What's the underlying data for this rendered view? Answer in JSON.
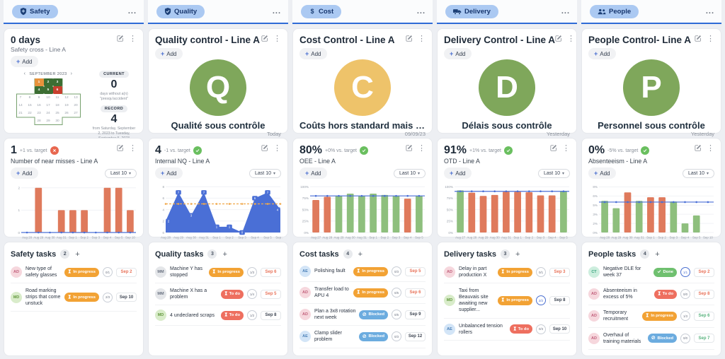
{
  "palette": {
    "pink": {
      "bg": "#f6d7dd",
      "fg": "#c2607c"
    },
    "green": {
      "bg": "#d9ecca",
      "fg": "#64993f"
    },
    "gray": {
      "bg": "#e4e6e9",
      "fg": "#697180"
    },
    "blue": {
      "bg": "#d3e5f7",
      "fg": "#4c80b8"
    },
    "teal": {
      "bg": "#cdeede",
      "fg": "#3aa47e"
    }
  },
  "status_styles": {
    "In progress": {
      "bg": "#f2a234",
      "icon": "hourglass-icon"
    },
    "To do": {
      "bg": "#ee6f5f",
      "icon": "hourglass-icon"
    },
    "Blocked": {
      "bg": "#6cacdf",
      "icon": "blocked-icon"
    },
    "Done": {
      "bg": "#6fc06f",
      "icon": "check-icon"
    }
  },
  "kpi_status": {
    "bad": {
      "color": "#e8674f",
      "icon": "x-icon"
    },
    "good": {
      "color": "#6abf5f",
      "icon": "check-icon"
    }
  },
  "columns": [
    {
      "id": "safety",
      "tab": {
        "label": "Safety",
        "icon": "shield-icon"
      },
      "menu_dots": "...",
      "control": {
        "title": "0 days",
        "subtitle": "Safety cross - Line A",
        "add_label": "Add",
        "calendar": {
          "month_label": "SEPTEMBER 2023",
          "prev": "‹",
          "next": "›",
          "days_in_month": 30,
          "cross_outline_color": "#76a06c",
          "day_colors": {
            "1": "#e8923c",
            "2": "#3c6e33",
            "3": "#3c6e33",
            "4": "#3c6e33",
            "5": "#3c6e33",
            "6": "#c8402f"
          }
        },
        "current": {
          "badge": "CURRENT",
          "value": "0",
          "caption": "days without a(n) \"presqu'accident\""
        },
        "record": {
          "badge": "RECORD",
          "value": "4",
          "caption": "from Saturday, September 2, 2023 to Tuesday, September 5, 2023"
        }
      },
      "kpi": {
        "value": "1",
        "delta": "+1 vs. target",
        "status": "bad",
        "title": "Number of near misses - Line A",
        "add_label": "Add",
        "range_label": "Last 10",
        "chart": {
          "type": "bar",
          "categories": [
            "Aug 28",
            "Aug 29",
            "Aug 30",
            "Aug 31",
            "Sep 1",
            "Sep 2",
            "Sep 3",
            "Sep 4",
            "Sep 5",
            "Sep 10"
          ],
          "values": [
            0,
            2,
            0,
            1,
            1,
            1,
            0,
            2,
            2,
            1
          ],
          "bar_color": "#df7a5c",
          "target": 0,
          "target_color": "#4a6fd6",
          "target_dash": false,
          "ymax": 2.15,
          "yticks": [
            {
              "v": 0,
              "label": "0"
            },
            {
              "v": 1,
              "label": "1"
            },
            {
              "v": 2,
              "label": "2"
            }
          ]
        }
      },
      "tasks": {
        "title": "Safety tasks",
        "count": "2",
        "add_label": "+",
        "items": [
          {
            "avatar": "AD",
            "avatar_color": "pink",
            "text": "New type of safety glasses",
            "status": "In progress",
            "fraction": "0/1",
            "done": false,
            "due": "Sep 2",
            "due_color": "#e8735a"
          },
          {
            "avatar": "MD",
            "avatar_color": "green",
            "text": "Road marking strips that come unstuck",
            "status": "In progress",
            "fraction": "2/3",
            "done": false,
            "due": "Sep 10",
            "due_color": "#3e4653"
          }
        ]
      }
    },
    {
      "id": "quality",
      "tab": {
        "label": "Quality",
        "icon": "shield-check-icon"
      },
      "menu_dots": "...",
      "control": {
        "title": "Quality control - Line A",
        "add_label": "Add",
        "letter": "Q",
        "circle_color": "#7fa75b",
        "status_text": "Qualité sous contrôle",
        "footer": "Today"
      },
      "kpi": {
        "value": "4",
        "delta": "-1 vs. target",
        "status": "good",
        "title": "Internal NQ - Line A",
        "add_label": "Add",
        "range_label": "Last 10",
        "chart": {
          "type": "area",
          "categories": [
            "Aug 28",
            "Aug 29",
            "Aug 30",
            "Aug 31",
            "Sep 1",
            "Sep 2",
            "Sep 3",
            "Sep 4",
            "Sep 5",
            "Sep 11"
          ],
          "values": [
            2,
            7,
            3,
            7,
            1,
            1,
            0,
            6,
            7,
            4
          ],
          "fill": "#4a6fd6",
          "point_labels": true,
          "target": 5,
          "target_color": "#f0a84b",
          "target_dash": true,
          "ymax": 8.4,
          "yticks": [
            {
              "v": 0,
              "label": "0"
            },
            {
              "v": 2,
              "label": "2"
            },
            {
              "v": 4,
              "label": "4"
            },
            {
              "v": 6,
              "label": "6"
            },
            {
              "v": 8,
              "label": "8"
            }
          ]
        }
      },
      "tasks": {
        "title": "Quality tasks",
        "count": "3",
        "add_label": "+",
        "items": [
          {
            "avatar": "MM",
            "avatar_color": "gray",
            "text": "Machine Y has stopped",
            "status": "In progress",
            "fraction": "1/3",
            "done": false,
            "due": "Sep 6",
            "due_color": "#e8735a"
          },
          {
            "avatar": "MM",
            "avatar_color": "gray",
            "text": "Machine X has a problem",
            "status": "To do",
            "fraction": "1/4",
            "done": false,
            "due": "Sep 5",
            "due_color": "#e8735a"
          },
          {
            "avatar": "MD",
            "avatar_color": "green",
            "text": "4 undeclared scraps",
            "status": "To do",
            "fraction": "1/2",
            "done": false,
            "due": "Sep 8",
            "due_color": "#3e4653"
          }
        ]
      }
    },
    {
      "id": "cost",
      "tab": {
        "label": "Cost",
        "icon": "dollar-icon"
      },
      "menu_dots": "...",
      "control": {
        "title": "Cost Control - Line A",
        "add_label": "Add",
        "letter": "C",
        "circle_color": "#eec36a",
        "status_text": "Coûts hors standard mais sous...",
        "footer": "09/09/23"
      },
      "kpi": {
        "value": "80%",
        "delta": "+0% vs. target",
        "status": "good",
        "title": "OEE - Line A",
        "add_label": "Add",
        "range_label": "Last 10",
        "chart": {
          "type": "bar",
          "categories": [
            "Aug 27",
            "Aug 28",
            "Aug 29",
            "Aug 30",
            "Aug 31",
            "Sep 1",
            "Sep 2",
            "Sep 3",
            "Sep 4",
            "Sep 5"
          ],
          "values": [
            71,
            78,
            80,
            85,
            80,
            85,
            82,
            80,
            74,
            80
          ],
          "bar_colors": [
            "#df7a5c",
            "#df7a5c",
            "#8ebf7d",
            "#8ebf7d",
            "#8ebf7d",
            "#8ebf7d",
            "#8ebf7d",
            "#8ebf7d",
            "#df7a5c",
            "#8ebf7d"
          ],
          "target": 80,
          "target_color": "#4a6fd6",
          "target_dash": false,
          "ymax": 105,
          "yticks": [
            {
              "v": 0,
              "label": "0%"
            },
            {
              "v": 25,
              "label": "25%"
            },
            {
              "v": 50,
              "label": "50%"
            },
            {
              "v": 75,
              "label": "75%"
            },
            {
              "v": 100,
              "label": "100%"
            }
          ]
        }
      },
      "tasks": {
        "title": "Cost tasks",
        "count": "4",
        "add_label": "+",
        "items": [
          {
            "avatar": "AE",
            "avatar_color": "blue",
            "text": "Polishing fault",
            "status": "In progress",
            "fraction": "0/3",
            "done": false,
            "due": "Sep 5",
            "due_color": "#e8735a"
          },
          {
            "avatar": "AD",
            "avatar_color": "pink",
            "text": "Transfer load to APU 4",
            "status": "In progress",
            "fraction": "0/5",
            "done": false,
            "due": "Sep 6",
            "due_color": "#e8735a"
          },
          {
            "avatar": "AD",
            "avatar_color": "pink",
            "text": "Plan a 3x8 rotation next week",
            "status": "Blocked",
            "fraction": "0/5",
            "done": false,
            "due": "Sep 9",
            "due_color": "#3e4653"
          },
          {
            "avatar": "AE",
            "avatar_color": "blue",
            "text": "Clamp slider problem",
            "status": "Blocked",
            "fraction": "0/3",
            "done": false,
            "due": "Sep 12",
            "due_color": "#3e4653"
          }
        ]
      }
    },
    {
      "id": "delivery",
      "tab": {
        "label": "Delivery",
        "icon": "truck-icon"
      },
      "menu_dots": "...",
      "control": {
        "title": "Delivery Control - Line A",
        "add_label": "Add",
        "letter": "D",
        "circle_color": "#7fa75b",
        "status_text": "Délais sous contrôle",
        "footer": "Yesterday"
      },
      "kpi": {
        "value": "91%",
        "delta": "+1% vs. target",
        "status": "good",
        "title": "OTD - Line A",
        "add_label": "Add",
        "range_label": "Last 10",
        "chart": {
          "type": "bar",
          "categories": [
            "Aug 27",
            "Aug 28",
            "Aug 29",
            "Aug 30",
            "Aug 31",
            "Sep 1",
            "Sep 2",
            "Sep 3",
            "Sep 4",
            "Sep 5"
          ],
          "values": [
            92,
            87,
            80,
            82,
            89,
            89,
            88,
            81,
            81,
            91
          ],
          "bar_colors": [
            "#8ebf7d",
            "#df7a5c",
            "#df7a5c",
            "#df7a5c",
            "#df7a5c",
            "#df7a5c",
            "#df7a5c",
            "#df7a5c",
            "#df7a5c",
            "#8ebf7d"
          ],
          "target": 90,
          "target_color": "#4a6fd6",
          "target_dash": false,
          "ymax": 105,
          "yticks": [
            {
              "v": 0,
              "label": "0%"
            },
            {
              "v": 25,
              "label": "25%"
            },
            {
              "v": 50,
              "label": "50%"
            },
            {
              "v": 75,
              "label": "75%"
            },
            {
              "v": 100,
              "label": "100%"
            }
          ]
        }
      },
      "tasks": {
        "title": "Delivery tasks",
        "count": "3",
        "add_label": "+",
        "items": [
          {
            "avatar": "AD",
            "avatar_color": "pink",
            "text": "Delay in part production X",
            "status": "In progress",
            "fraction": "0/1",
            "done": false,
            "due": "Sep 3",
            "due_color": "#e8735a"
          },
          {
            "avatar": "MD",
            "avatar_color": "green",
            "text": "Taxi from Beauvais site awaiting new supplier...",
            "status": "In progress",
            "fraction": "2/2",
            "done": true,
            "due": "Sep 8",
            "due_color": "#3e4653"
          },
          {
            "avatar": "AE",
            "avatar_color": "blue",
            "text": "Unbalanced tension rollers",
            "status": "To do",
            "fraction": "0/3",
            "done": false,
            "due": "Sep 10",
            "due_color": "#3e4653"
          }
        ]
      }
    },
    {
      "id": "people",
      "tab": {
        "label": "People",
        "icon": "people-icon"
      },
      "menu_dots": "...",
      "control": {
        "title": "People Control- Line A",
        "add_label": "Add",
        "letter": "P",
        "circle_color": "#7fa75b",
        "status_text": "Personnel sous contrôle",
        "footer": "Yesterday"
      },
      "kpi": {
        "value": "0%",
        "delta": "-5% vs. target",
        "status": "good",
        "title": "Absenteeism - Line A",
        "add_label": "Add",
        "range_label": "Last 10",
        "chart": {
          "type": "bar",
          "categories": [
            "Aug 28",
            "Aug 29",
            "Aug 30",
            "Aug 31",
            "Sep 1",
            "Sep 2",
            "Sep 3",
            "Sep 4",
            "Sep 5",
            "Sep 10"
          ],
          "values": [
            5.2,
            4,
            6.6,
            5.2,
            5.8,
            5.8,
            5.1,
            1.5,
            2.8,
            0
          ],
          "bar_colors": [
            "#8ebf7d",
            "#8ebf7d",
            "#df7a5c",
            "#8ebf7d",
            "#df7a5c",
            "#df7a5c",
            "#8ebf7d",
            "#8ebf7d",
            "#8ebf7d",
            "#8ebf7d"
          ],
          "target": 5,
          "target_color": "#4a6fd6",
          "target_dash": false,
          "ymax": 7.9,
          "yticks": [
            {
              "v": 0,
              "label": "0%"
            },
            {
              "v": 1.5,
              "label": "2%"
            },
            {
              "v": 3,
              "label": "3%"
            },
            {
              "v": 4.5,
              "label": "5%"
            },
            {
              "v": 6,
              "label": "6%"
            },
            {
              "v": 7.5,
              "label": "8%"
            }
          ]
        }
      },
      "tasks": {
        "title": "People tasks",
        "count": "4",
        "add_label": "+",
        "items": [
          {
            "avatar": "CT",
            "avatar_color": "teal",
            "text": "Negative DLE for week 37",
            "status": "Done",
            "fraction": "1/1",
            "done": true,
            "due": "Sep 2",
            "due_color": "#e8735a"
          },
          {
            "avatar": "AD",
            "avatar_color": "pink",
            "text": "Absenteeism in excess of 5%",
            "status": "To do",
            "fraction": "0/0",
            "done": false,
            "due": "Sep 8",
            "due_color": "#e8735a"
          },
          {
            "avatar": "AD",
            "avatar_color": "pink",
            "text": "Temporary recruitment",
            "status": "In progress",
            "fraction": "1/3",
            "done": false,
            "due": "Sep 6",
            "due_color": "#58b27e"
          },
          {
            "avatar": "AD",
            "avatar_color": "pink",
            "text": "Overhaul of training materials",
            "status": "Blocked",
            "fraction": "0/0",
            "done": false,
            "due": "Sep 7",
            "due_color": "#58b27e"
          }
        ]
      }
    }
  ]
}
